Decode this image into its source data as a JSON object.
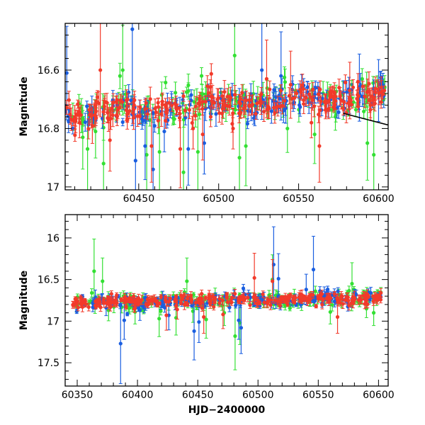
{
  "colors": {
    "green": "#33e033",
    "blue": "#1a5ee0",
    "red": "#f23a2a",
    "frame": "#000000",
    "trend": "#000000"
  },
  "chart_data": [
    {
      "type": "scatter",
      "title": "",
      "xlabel": "",
      "ylabel": "Magnitude",
      "y_inverted": true,
      "xlim": [
        60404,
        60606
      ],
      "ylim": [
        16.44,
        17.01
      ],
      "xticks": [
        60450,
        60500,
        60550,
        60600
      ],
      "xtick_labels": [
        "60450",
        "60500",
        "60550",
        "60600"
      ],
      "yticks": [
        16.6,
        16.8,
        17.0
      ],
      "ytick_labels": [
        "16.6",
        "16.8",
        "17"
      ],
      "trend_line": {
        "x": [
          60578,
          60606
        ],
        "y": [
          16.748,
          16.788
        ]
      },
      "series": [
        {
          "color": "green",
          "n": 130,
          "x_range": [
            60404,
            60604
          ],
          "y_center": [
            16.74,
            16.68
          ],
          "scatter": 0.028,
          "outliers": [
            [
              60415,
              16.83
            ],
            [
              60418,
              16.87
            ],
            [
              60423,
              16.81
            ],
            [
              60428,
              16.92
            ],
            [
              60440,
              16.6
            ],
            [
              60455,
              16.89
            ],
            [
              60463,
              16.88
            ],
            [
              60478,
              16.95
            ],
            [
              60487,
              16.88
            ],
            [
              60510,
              16.55
            ],
            [
              60517,
              16.86
            ],
            [
              60543,
              16.8
            ],
            [
              60560,
              16.82
            ],
            [
              60573,
              16.76
            ],
            [
              60593,
              16.85
            ],
            [
              60597,
              16.89
            ],
            [
              60513,
              16.9
            ]
          ]
        },
        {
          "color": "blue",
          "n": 150,
          "x_range": [
            60404,
            60604
          ],
          "y_center": [
            16.76,
            16.68
          ],
          "scatter": 0.025,
          "outliers": [
            [
              60405,
              16.61
            ],
            [
              60446,
              16.46
            ],
            [
              60448,
              16.91
            ],
            [
              60454,
              16.86
            ],
            [
              60459,
              16.94
            ],
            [
              60466,
              16.81
            ],
            [
              60481,
              16.87
            ],
            [
              60491,
              16.85
            ],
            [
              60527,
              16.6
            ],
            [
              60539,
              16.62
            ],
            [
              60542,
              16.73
            ],
            [
              60588,
              16.66
            ],
            [
              60600,
              16.67
            ]
          ]
        },
        {
          "color": "red",
          "n": 240,
          "x_range": [
            60404,
            60604
          ],
          "y_center": [
            16.75,
            16.68
          ],
          "scatter": 0.025,
          "outliers": [
            [
              60413,
              16.78
            ],
            [
              60421,
              16.79
            ],
            [
              60426,
              16.6
            ],
            [
              60432,
              16.84
            ],
            [
              60458,
              16.86
            ],
            [
              60476,
              16.87
            ],
            [
              60484,
              16.8
            ],
            [
              60490,
              16.82
            ],
            [
              60495,
              16.76
            ],
            [
              60509,
              16.8
            ],
            [
              60530,
              16.63
            ],
            [
              60545,
              16.65
            ],
            [
              60558,
              16.78
            ],
            [
              60563,
              16.86
            ],
            [
              60582,
              16.67
            ],
            [
              60595,
              16.72
            ]
          ]
        }
      ]
    },
    {
      "type": "scatter",
      "title": "",
      "xlabel": "HJD−2400000",
      "ylabel": "Magnitude",
      "y_inverted": true,
      "xlim": [
        60340,
        60608
      ],
      "ylim": [
        15.72,
        17.78
      ],
      "xticks": [
        60350,
        60400,
        60450,
        60500,
        60550,
        60600
      ],
      "xtick_labels": [
        "60350",
        "60400",
        "60450",
        "60500",
        "60550",
        "60600"
      ],
      "yticks": [
        16,
        16.5,
        17,
        17.5
      ],
      "ytick_labels": [
        "16",
        "16.5",
        "17",
        "17.5"
      ],
      "series": [
        {
          "color": "green",
          "n": 170,
          "x_range": [
            60346,
            60602
          ],
          "y_center": [
            16.78,
            16.72
          ],
          "scatter": 0.045,
          "outliers": [
            [
              60364,
              16.4
            ],
            [
              60371,
              16.52
            ],
            [
              60398,
              16.89
            ],
            [
              60418,
              16.97
            ],
            [
              60432,
              16.96
            ],
            [
              60441,
              16.52
            ],
            [
              60446,
              16.88
            ],
            [
              60457,
              16.98
            ],
            [
              60472,
              16.9
            ],
            [
              60481,
              17.18
            ],
            [
              60485,
              17.02
            ],
            [
              60512,
              16.5
            ],
            [
              60560,
              16.89
            ],
            [
              60578,
              16.55
            ],
            [
              60590,
              16.85
            ],
            [
              60596,
              16.9
            ],
            [
              60376,
              16.87
            ]
          ]
        },
        {
          "color": "blue",
          "n": 160,
          "x_range": [
            60346,
            60602
          ],
          "y_center": [
            16.78,
            16.72
          ],
          "scatter": 0.04,
          "outliers": [
            [
              60386,
              17.27
            ],
            [
              60389,
              16.99
            ],
            [
              60402,
              16.87
            ],
            [
              60426,
              16.93
            ],
            [
              60447,
              17.12
            ],
            [
              60451,
              17.01
            ],
            [
              60484,
              16.99
            ],
            [
              60486,
              17.08
            ],
            [
              60513,
              16.32
            ],
            [
              60517,
              16.49
            ],
            [
              60540,
              16.62
            ],
            [
              60546,
              16.38
            ],
            [
              60555,
              16.7
            ],
            [
              60365,
              16.72
            ],
            [
              60374,
              16.84
            ]
          ]
        },
        {
          "color": "red",
          "n": 280,
          "x_range": [
            60346,
            60602
          ],
          "y_center": [
            16.77,
            16.72
          ],
          "scatter": 0.035,
          "outliers": [
            [
              60424,
              16.93
            ],
            [
              60433,
              16.86
            ],
            [
              60455,
              16.95
            ],
            [
              60471,
              16.92
            ],
            [
              60497,
              16.48
            ],
            [
              60512,
              16.52
            ],
            [
              60566,
              16.95
            ],
            [
              60580,
              16.72
            ],
            [
              60439,
              16.8
            ]
          ]
        }
      ]
    }
  ]
}
